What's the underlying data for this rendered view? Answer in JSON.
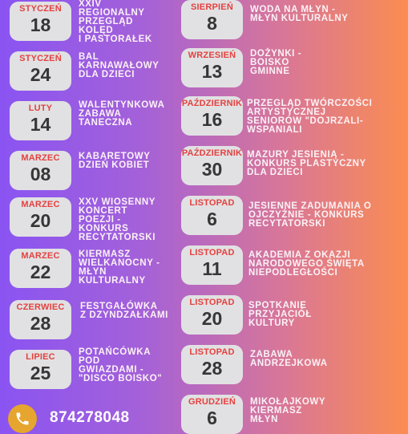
{
  "events": [
    {
      "month": "STYCZEŃ",
      "day": "18",
      "title": "XXIV\nREGIONALNY\nPRZEGLĄD\nKOLĘD\nI PASTORAŁEK"
    },
    {
      "month": "STYCZEŃ",
      "day": "24",
      "title": "BAL\nKARNAWAŁOWY\nDLA DZIECI"
    },
    {
      "month": "LUTY",
      "day": "14",
      "title": "WALENTYNKOWA\nZABAWA\nTANECZNA"
    },
    {
      "month": "MARZEC",
      "day": "08",
      "title": "KABARETOWY\nDZIEŃ KOBIET"
    },
    {
      "month": "MARZEC",
      "day": "20",
      "title": "XXV WIOSENNY\nKONCERT\nPOEZJI -\nKONKURS\nRECYTATORSKI"
    },
    {
      "month": "MARZEC",
      "day": "22",
      "title": "KIERMASZ\nWIELKANOCNY -\nMŁYN\nKULTURALNY"
    },
    {
      "month": "CZERWIEC",
      "day": "28",
      "title": "FESTGAŁÓWKA\nZ DZYNDZAŁKAMI"
    },
    {
      "month": "LIPIEC",
      "day": "25",
      "title": "POTAŃCÓWKA\nPOD\nGWIAZDAMI -\n\"DISCO BOISKO\""
    },
    {
      "month": "SIERPIEŃ",
      "day": "8",
      "title": "WODA NA MŁYN -\nMŁYN KULTURALNY"
    },
    {
      "month": "WRZESIEŃ",
      "day": "13",
      "title": "DOŻYNKI -\nBOISKO\nGMINNE"
    },
    {
      "month": "PAŹDZIERNIK",
      "day": "16",
      "title": "PRZEGLĄD TWÓRCZOŚCI\nARTYSTYCZNEJ\nSENIORÓW \"DOJRZALI-\nWSPANIALI"
    },
    {
      "month": "PAŹDZIERNIK",
      "day": "30",
      "title": "MAZURY JESIENIĄ -\nKONKURS PLASTYCZNY\nDLA DZIECI"
    },
    {
      "month": "LISTOPAD",
      "day": "6",
      "title": "JESIENNE ZADUMANIA O\nOJCZYŹNIE - KONKURS\nRECYTATORSKI"
    },
    {
      "month": "LISTOPAD",
      "day": "11",
      "title": "AKADEMIA Z OKAZJI\nNARODOWEGO ŚWIĘTA\nNIEPODLEGŁOŚCI"
    },
    {
      "month": "LISTOPAD",
      "day": "20",
      "title": "SPOTKANIE\nPRZYJACIÓŁ\nKULTURY"
    },
    {
      "month": "LISTOPAD",
      "day": "28",
      "title": "ZABAWA\nANDRZEJKOWA"
    },
    {
      "month": "GRUDZIEŃ",
      "day": "6",
      "title": "MIKOŁAJKOWY\nKIERMASZ\nMŁYN"
    }
  ],
  "footer": {
    "phone": "874278048",
    "icon": "phone-icon"
  },
  "colors": {
    "card": "#e1e1e3",
    "month": "#e4413f",
    "day": "#363636",
    "icon": "#e6a52e"
  }
}
